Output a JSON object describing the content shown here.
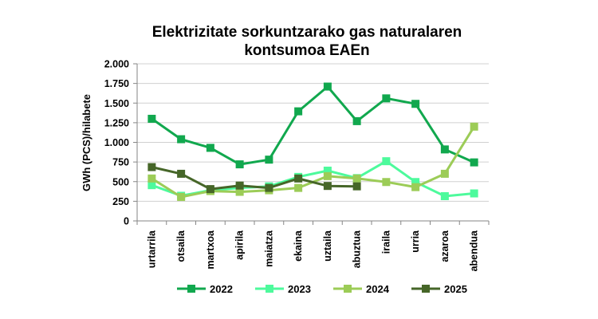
{
  "chart_data": {
    "type": "line",
    "title_lines": [
      "Elektrizitate sorkuntzarako gas naturalaren",
      "kontsumoa EAEn"
    ],
    "ylabel": "GWh (PCS)/hilabete",
    "xlabel": "",
    "ylim": [
      0,
      2000
    ],
    "ytick_values": [
      0,
      250,
      500,
      750,
      1000,
      1250,
      1500,
      1750,
      2000
    ],
    "ytick_labels": [
      "0",
      "250",
      "500",
      "750",
      "1.000",
      "1.250",
      "1.500",
      "1.750",
      "2.000"
    ],
    "categories": [
      "urtarrila",
      "otsaila",
      "martxoa",
      "apirila",
      "maiatza",
      "ekaina",
      "uztaila",
      "abuztua",
      "iraila",
      "urria",
      "azaroa",
      "abendua"
    ],
    "grid": "horizontal",
    "legend_position": "bottom",
    "series": [
      {
        "name": "2022",
        "color": "#11a84e",
        "values": [
          1300,
          1040,
          930,
          720,
          780,
          1395,
          1710,
          1270,
          1560,
          1490,
          910,
          745
        ]
      },
      {
        "name": "2023",
        "color": "#4dfa9c",
        "values": [
          455,
          320,
          390,
          420,
          440,
          560,
          640,
          545,
          760,
          495,
          315,
          350
        ]
      },
      {
        "name": "2024",
        "color": "#9ccc57",
        "values": [
          540,
          305,
          380,
          370,
          390,
          420,
          570,
          540,
          495,
          430,
          600,
          1200
        ]
      },
      {
        "name": "2025",
        "color": "#466628",
        "values": [
          685,
          600,
          405,
          450,
          420,
          540,
          445,
          440,
          null,
          null,
          null,
          null
        ]
      }
    ]
  }
}
